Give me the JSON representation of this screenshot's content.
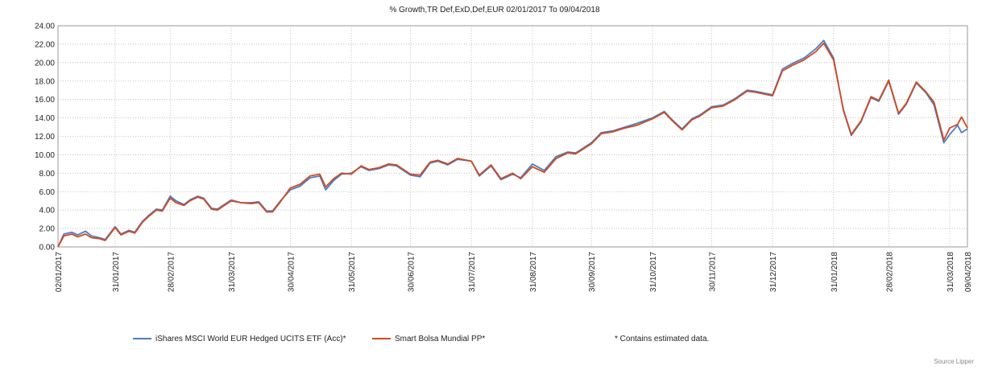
{
  "chart_data": {
    "type": "line",
    "title": "% Growth,TR Def,ExD,Def,EUR 02/01/2017 To 09/04/2018",
    "xlabel": "",
    "ylabel": "",
    "ylim": [
      0,
      24
    ],
    "yticks": [
      "0.00",
      "2.00",
      "4.00",
      "6.00",
      "8.00",
      "10.00",
      "12.00",
      "14.00",
      "16.00",
      "18.00",
      "20.00",
      "22.00",
      "24.00"
    ],
    "xticks": [
      "02/01/2017",
      "31/01/2017",
      "28/02/2017",
      "31/03/2017",
      "30/04/2017",
      "31/05/2017",
      "30/06/2017",
      "31/07/2017",
      "31/08/2017",
      "30/09/2017",
      "31/10/2017",
      "30/11/2017",
      "31/12/2017",
      "31/01/2018",
      "28/02/2018",
      "31/03/2018",
      "09/04/2018"
    ],
    "grid": true,
    "legend_position": "bottom",
    "x": [
      "02/01/2017",
      "05/01/2017",
      "09/01/2017",
      "12/01/2017",
      "16/01/2017",
      "19/01/2017",
      "23/01/2017",
      "26/01/2017",
      "31/01/2017",
      "03/02/2017",
      "07/02/2017",
      "10/02/2017",
      "14/02/2017",
      "17/02/2017",
      "21/02/2017",
      "24/02/2017",
      "28/02/2017",
      "03/03/2017",
      "07/03/2017",
      "10/03/2017",
      "14/03/2017",
      "17/03/2017",
      "21/03/2017",
      "24/03/2017",
      "31/03/2017",
      "05/04/2017",
      "10/04/2017",
      "14/04/2017",
      "18/04/2017",
      "21/04/2017",
      "25/04/2017",
      "30/04/2017",
      "05/05/2017",
      "10/05/2017",
      "15/05/2017",
      "18/05/2017",
      "22/05/2017",
      "26/05/2017",
      "31/05/2017",
      "05/06/2017",
      "09/06/2017",
      "14/06/2017",
      "19/06/2017",
      "23/06/2017",
      "30/06/2017",
      "05/07/2017",
      "10/07/2017",
      "14/07/2017",
      "19/07/2017",
      "24/07/2017",
      "31/07/2017",
      "04/08/2017",
      "10/08/2017",
      "15/08/2017",
      "21/08/2017",
      "25/08/2017",
      "31/08/2017",
      "06/09/2017",
      "12/09/2017",
      "18/09/2017",
      "22/09/2017",
      "30/09/2017",
      "05/10/2017",
      "11/10/2017",
      "17/10/2017",
      "23/10/2017",
      "31/10/2017",
      "06/11/2017",
      "10/11/2017",
      "15/11/2017",
      "20/11/2017",
      "24/11/2017",
      "30/11/2017",
      "06/12/2017",
      "12/12/2017",
      "18/12/2017",
      "22/12/2017",
      "31/12/2017",
      "05/01/2018",
      "10/01/2018",
      "16/01/2018",
      "22/01/2018",
      "26/01/2018",
      "31/01/2018",
      "05/02/2018",
      "09/02/2018",
      "14/02/2018",
      "19/02/2018",
      "23/02/2018",
      "28/02/2018",
      "05/03/2018",
      "09/03/2018",
      "14/03/2018",
      "19/03/2018",
      "23/03/2018",
      "28/03/2018",
      "31/03/2018",
      "04/04/2018",
      "06/04/2018",
      "09/04/2018"
    ],
    "series": [
      {
        "name": "iShares MSCI World EUR Hedged UCITS ETF (Acc)*",
        "color": "#4a7ec8",
        "values": [
          0.0,
          1.4,
          1.6,
          1.3,
          1.7,
          1.2,
          1.0,
          0.8,
          2.2,
          1.4,
          1.8,
          1.6,
          2.8,
          3.4,
          4.1,
          4.0,
          5.5,
          5.0,
          4.6,
          5.1,
          5.5,
          5.3,
          4.2,
          4.1,
          5.1,
          4.8,
          4.8,
          4.9,
          3.9,
          3.9,
          5.0,
          6.2,
          6.6,
          7.5,
          7.7,
          6.2,
          7.2,
          7.9,
          8.0,
          8.7,
          8.3,
          8.5,
          8.9,
          8.8,
          7.8,
          7.6,
          9.1,
          9.3,
          8.9,
          9.5,
          9.3,
          7.7,
          8.8,
          7.3,
          7.9,
          7.5,
          9.0,
          8.3,
          9.8,
          10.3,
          10.2,
          11.3,
          12.4,
          12.6,
          13.0,
          13.4,
          14.0,
          14.7,
          13.8,
          12.8,
          13.9,
          14.3,
          15.2,
          15.4,
          16.1,
          17.0,
          16.9,
          16.5,
          19.3,
          19.9,
          20.5,
          21.5,
          22.4,
          20.5,
          14.8,
          12.1,
          13.6,
          16.2,
          15.8,
          18.0,
          14.4,
          15.5,
          17.8,
          16.7,
          15.4,
          11.3,
          12.2,
          13.2,
          12.4,
          12.8
        ]
      },
      {
        "name": "Smart Bolsa Mundial  PP*",
        "color": "#d24a1e",
        "values": [
          0.0,
          1.2,
          1.4,
          1.1,
          1.4,
          1.0,
          0.9,
          0.7,
          2.1,
          1.3,
          1.7,
          1.5,
          2.7,
          3.3,
          4.0,
          3.9,
          5.3,
          4.8,
          4.5,
          5.0,
          5.4,
          5.2,
          4.1,
          4.0,
          5.0,
          4.8,
          4.7,
          4.8,
          3.8,
          3.8,
          4.9,
          6.4,
          6.8,
          7.7,
          7.9,
          6.5,
          7.4,
          8.0,
          7.9,
          8.8,
          8.4,
          8.6,
          9.0,
          8.9,
          7.9,
          7.8,
          9.2,
          9.4,
          9.0,
          9.6,
          9.3,
          7.8,
          8.9,
          7.4,
          8.0,
          7.4,
          8.7,
          8.1,
          9.6,
          10.2,
          10.1,
          11.2,
          12.3,
          12.5,
          12.9,
          13.2,
          13.9,
          14.6,
          13.7,
          12.7,
          13.8,
          14.2,
          15.1,
          15.3,
          16.0,
          16.9,
          16.8,
          16.4,
          19.1,
          19.7,
          20.3,
          21.2,
          22.1,
          20.3,
          14.9,
          12.2,
          13.7,
          16.3,
          15.9,
          18.1,
          14.5,
          15.6,
          17.9,
          16.8,
          15.7,
          11.6,
          12.9,
          13.3,
          14.1,
          12.9
        ]
      }
    ],
    "legend": [
      {
        "label": "iShares MSCI World EUR Hedged UCITS ETF (Acc)*",
        "color": "#4a7ec8"
      },
      {
        "label": "Smart Bolsa Mundial  PP*",
        "color": "#d24a1e"
      }
    ],
    "note": "*  Contains estimated data.",
    "source": "Source Lipper"
  }
}
